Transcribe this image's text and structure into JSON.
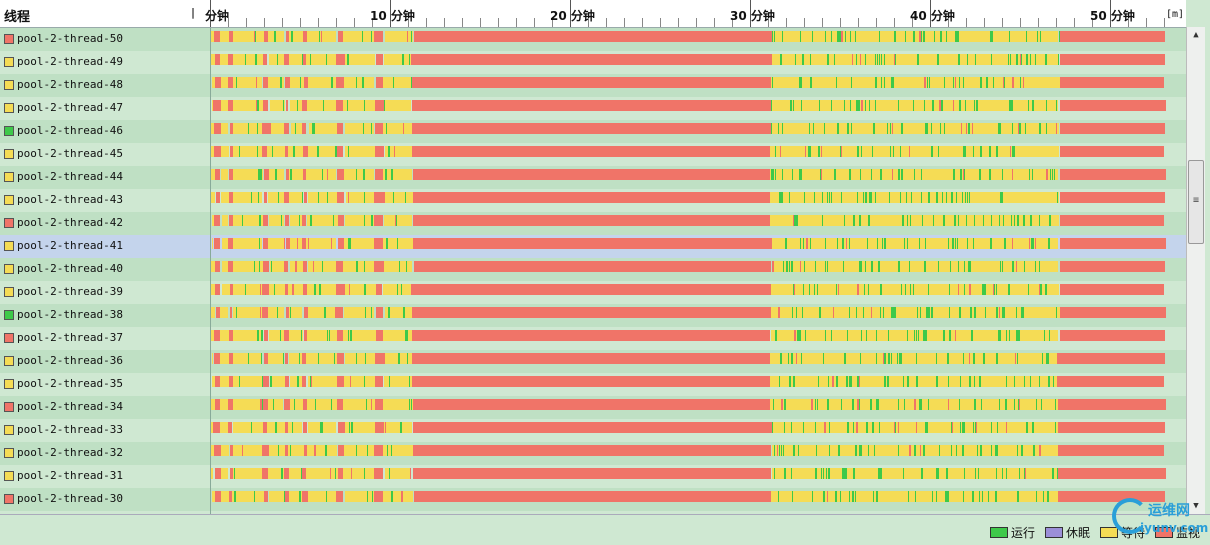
{
  "header": {
    "thread_column_title": "线程",
    "zero_mark": "|",
    "ruler_labels": [
      {
        "minute": 0,
        "text": "分钟"
      },
      {
        "minute": 10,
        "text": "10 分钟"
      },
      {
        "minute": 20,
        "text": "20 分钟"
      },
      {
        "minute": 30,
        "text": "30 分钟"
      },
      {
        "minute": 40,
        "text": "40 分钟"
      },
      {
        "minute": 50,
        "text": "50 分钟"
      }
    ],
    "unit": "[m]",
    "total_minutes": 54
  },
  "colors": {
    "running": "#3ec94a",
    "sleeping": "#9b8fd8",
    "waiting": "#f5dc55",
    "monitor": "#f07468"
  },
  "threads": [
    {
      "name": "pool-2-thread-50",
      "state": "monitor",
      "selected": false,
      "variant": 0
    },
    {
      "name": "pool-2-thread-49",
      "state": "waiting",
      "selected": false,
      "variant": 1
    },
    {
      "name": "pool-2-thread-48",
      "state": "waiting",
      "selected": false,
      "variant": 2
    },
    {
      "name": "pool-2-thread-47",
      "state": "waiting",
      "selected": false,
      "variant": 3
    },
    {
      "name": "pool-2-thread-46",
      "state": "running",
      "selected": false,
      "variant": 4
    },
    {
      "name": "pool-2-thread-45",
      "state": "waiting",
      "selected": false,
      "variant": 5
    },
    {
      "name": "pool-2-thread-44",
      "state": "waiting",
      "selected": false,
      "variant": 6
    },
    {
      "name": "pool-2-thread-43",
      "state": "waiting",
      "selected": false,
      "variant": 7
    },
    {
      "name": "pool-2-thread-42",
      "state": "monitor",
      "selected": false,
      "variant": 8
    },
    {
      "name": "pool-2-thread-41",
      "state": "waiting",
      "selected": true,
      "variant": 9
    },
    {
      "name": "pool-2-thread-40",
      "state": "waiting",
      "selected": false,
      "variant": 10
    },
    {
      "name": "pool-2-thread-39",
      "state": "waiting",
      "selected": false,
      "variant": 11
    },
    {
      "name": "pool-2-thread-38",
      "state": "running",
      "selected": false,
      "variant": 12
    },
    {
      "name": "pool-2-thread-37",
      "state": "monitor",
      "selected": false,
      "variant": 13
    },
    {
      "name": "pool-2-thread-36",
      "state": "waiting",
      "selected": false,
      "variant": 14
    },
    {
      "name": "pool-2-thread-35",
      "state": "waiting",
      "selected": false,
      "variant": 15
    },
    {
      "name": "pool-2-thread-34",
      "state": "monitor",
      "selected": false,
      "variant": 16
    },
    {
      "name": "pool-2-thread-33",
      "state": "waiting",
      "selected": false,
      "variant": 17
    },
    {
      "name": "pool-2-thread-32",
      "state": "waiting",
      "selected": false,
      "variant": 18
    },
    {
      "name": "pool-2-thread-31",
      "state": "waiting",
      "selected": false,
      "variant": 19
    },
    {
      "name": "pool-2-thread-30",
      "state": "monitor",
      "selected": false,
      "variant": 20
    }
  ],
  "timeline_pattern": [
    {
      "from": 0,
      "to": 0.2,
      "state": "waiting"
    },
    {
      "from": 0.2,
      "to": 0.55,
      "state": "monitor"
    },
    {
      "from": 0.55,
      "to": 1.0,
      "state": "waiting"
    },
    {
      "from": 1.0,
      "to": 1.25,
      "state": "monitor"
    },
    {
      "from": 1.25,
      "to": 2.9,
      "state": "waiting"
    },
    {
      "from": 2.9,
      "to": 3.2,
      "state": "monitor"
    },
    {
      "from": 3.2,
      "to": 4.1,
      "state": "waiting"
    },
    {
      "from": 4.1,
      "to": 4.35,
      "state": "monitor"
    },
    {
      "from": 4.35,
      "to": 5.1,
      "state": "waiting"
    },
    {
      "from": 5.1,
      "to": 5.35,
      "state": "monitor"
    },
    {
      "from": 5.35,
      "to": 7.0,
      "state": "waiting"
    },
    {
      "from": 7.0,
      "to": 7.4,
      "state": "monitor"
    },
    {
      "from": 7.4,
      "to": 9.1,
      "state": "waiting"
    },
    {
      "from": 9.1,
      "to": 9.6,
      "state": "monitor"
    },
    {
      "from": 9.6,
      "to": 11.2,
      "state": "waiting"
    },
    {
      "from": 11.2,
      "to": 31.1,
      "state": "monitor"
    },
    {
      "from": 31.1,
      "to": 47.1,
      "state": "waiting"
    },
    {
      "from": 47.1,
      "to": 53.0,
      "state": "monitor"
    }
  ],
  "legend": [
    {
      "label": "运行",
      "state": "running"
    },
    {
      "label": "休眠",
      "state": "sleeping"
    },
    {
      "label": "等待",
      "state": "waiting"
    },
    {
      "label": "监视",
      "state": "monitor"
    }
  ],
  "watermark": {
    "top": "运维网",
    "bottom": "iyunv.com"
  }
}
